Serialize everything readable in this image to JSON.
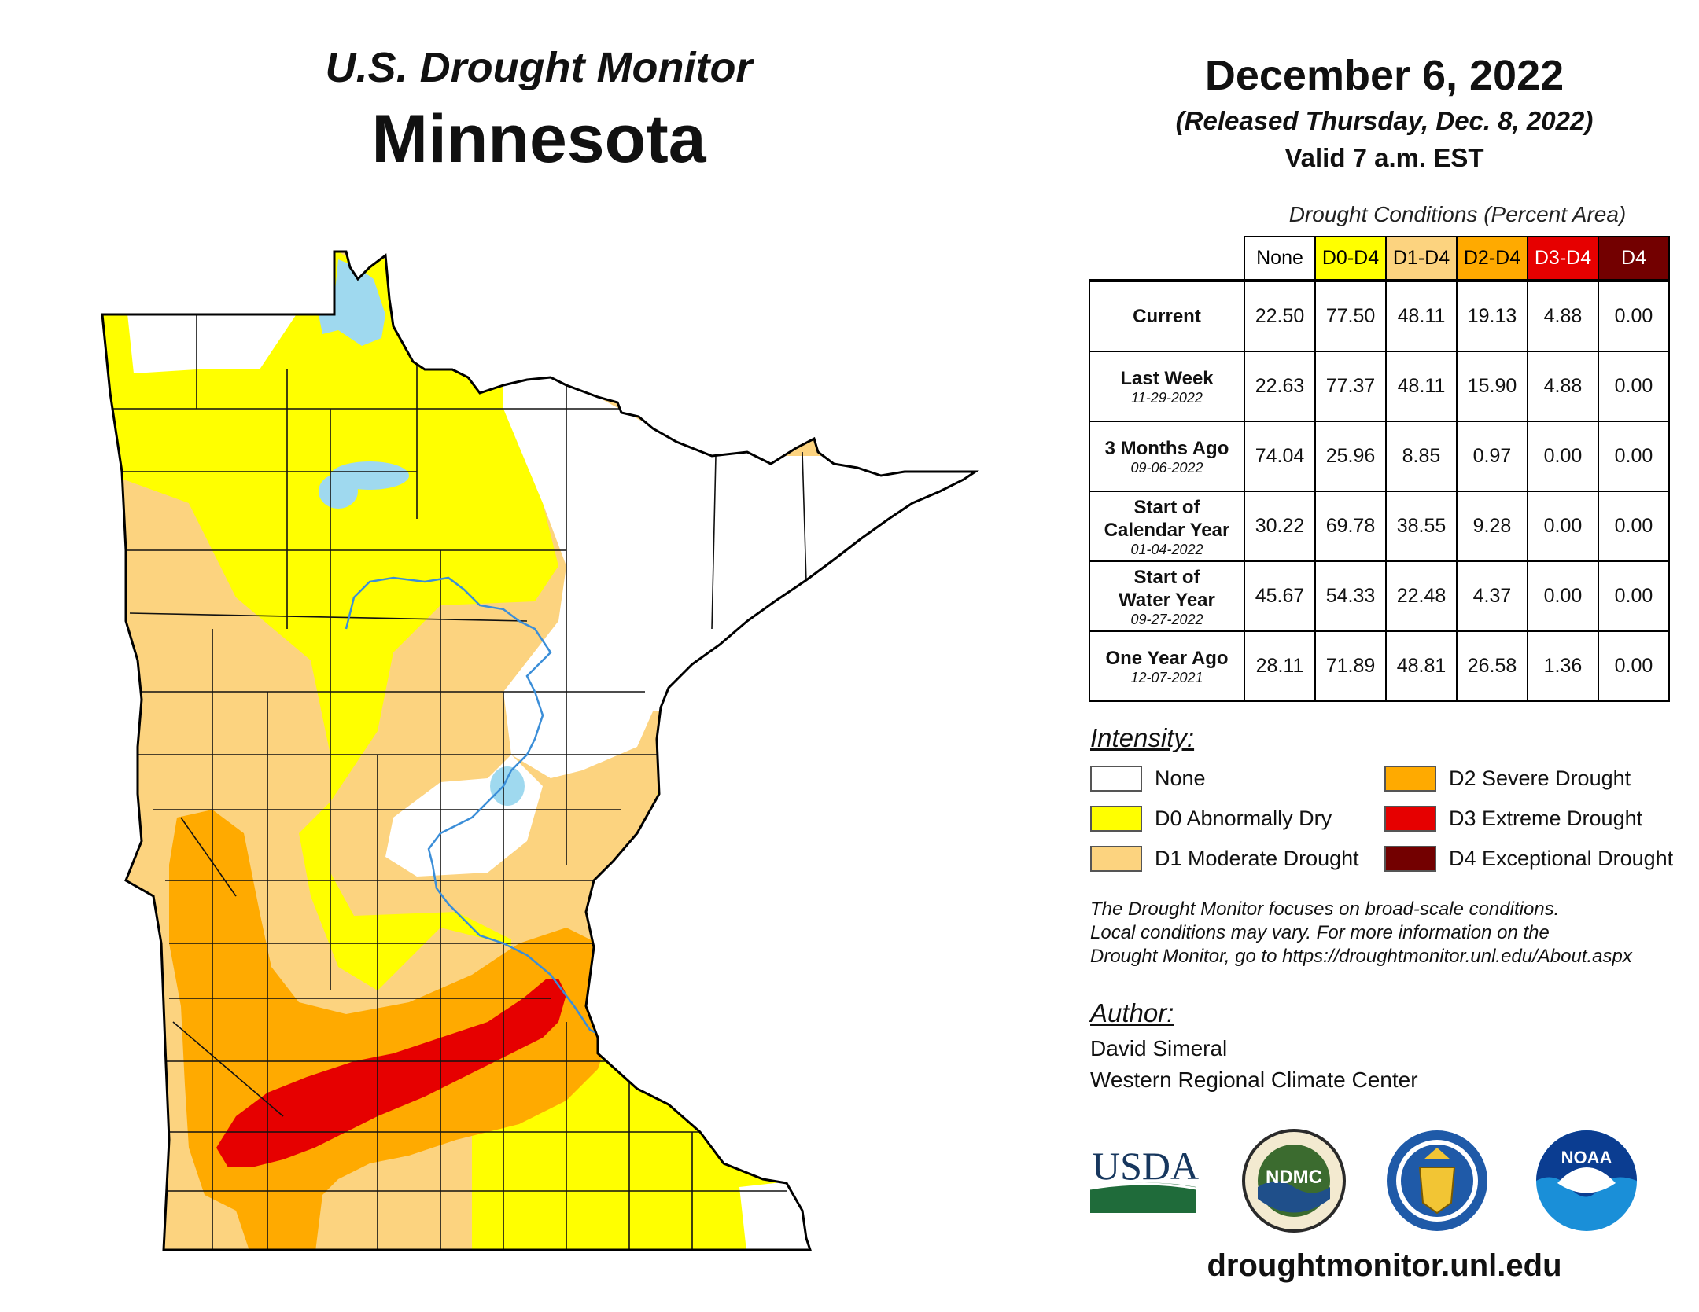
{
  "header": {
    "title": "U.S. Drought Monitor",
    "state": "Minnesota",
    "date": "December 6, 2022",
    "released": "(Released Thursday, Dec. 8, 2022)",
    "valid": "Valid 7 a.m. EST"
  },
  "table": {
    "caption": "Drought Conditions (Percent Area)",
    "columns": [
      {
        "label": "None",
        "bg": "#ffffff",
        "fg": "#000000"
      },
      {
        "label": "D0-D4",
        "bg": "#ffff00",
        "fg": "#000000"
      },
      {
        "label": "D1-D4",
        "bg": "#fcd37f",
        "fg": "#000000"
      },
      {
        "label": "D2-D4",
        "bg": "#ffaa00",
        "fg": "#000000"
      },
      {
        "label": "D3-D4",
        "bg": "#e60000",
        "fg": "#ffffff"
      },
      {
        "label": "D4",
        "bg": "#730000",
        "fg": "#ffffff"
      }
    ],
    "rows": [
      {
        "label": [
          "Current"
        ],
        "date": "",
        "values": [
          "22.50",
          "77.50",
          "48.11",
          "19.13",
          "4.88",
          "0.00"
        ]
      },
      {
        "label": [
          "Last Week"
        ],
        "date": "11-29-2022",
        "values": [
          "22.63",
          "77.37",
          "48.11",
          "15.90",
          "4.88",
          "0.00"
        ]
      },
      {
        "label": [
          "3 Months Ago"
        ],
        "date": "09-06-2022",
        "values": [
          "74.04",
          "25.96",
          "8.85",
          "0.97",
          "0.00",
          "0.00"
        ]
      },
      {
        "label": [
          "Start of",
          "Calendar Year"
        ],
        "date": "01-04-2022",
        "values": [
          "30.22",
          "69.78",
          "38.55",
          "9.28",
          "0.00",
          "0.00"
        ]
      },
      {
        "label": [
          "Start of",
          "Water Year"
        ],
        "date": "09-27-2022",
        "values": [
          "45.67",
          "54.33",
          "22.48",
          "4.37",
          "0.00",
          "0.00"
        ]
      },
      {
        "label": [
          "One Year Ago"
        ],
        "date": "12-07-2021",
        "values": [
          "28.11",
          "71.89",
          "48.81",
          "26.58",
          "1.36",
          "0.00"
        ]
      }
    ]
  },
  "legend": {
    "heading": "Intensity:",
    "items": [
      {
        "label": "None",
        "color": "#ffffff"
      },
      {
        "label": "D0 Abnormally Dry",
        "color": "#ffff00"
      },
      {
        "label": "D1 Moderate Drought",
        "color": "#fcd37f"
      },
      {
        "label": "D2 Severe Drought",
        "color": "#ffaa00"
      },
      {
        "label": "D3 Extreme Drought",
        "color": "#e60000"
      },
      {
        "label": "D4 Exceptional Drought",
        "color": "#730000"
      }
    ]
  },
  "note": [
    "The Drought Monitor focuses on broad-scale conditions.",
    "Local conditions may vary. For more information on the",
    "Drought Monitor, go to https://droughtmonitor.unl.edu/About.aspx"
  ],
  "author": {
    "heading": "Author:",
    "name": "David Simeral",
    "org": "Western Regional Climate Center"
  },
  "logos": {
    "usda": "USDA",
    "ndmc": "NDMC",
    "noaa": "NOAA"
  },
  "footer": {
    "url": "droughtmonitor.unl.edu"
  },
  "map": {
    "colors": {
      "none": "#ffffff",
      "d0": "#ffff00",
      "d1": "#fcd37f",
      "d2": "#ffaa00",
      "d3": "#e60000",
      "water": "#9fd9ef",
      "river": "#3b8ed8",
      "border": "#000000"
    }
  }
}
